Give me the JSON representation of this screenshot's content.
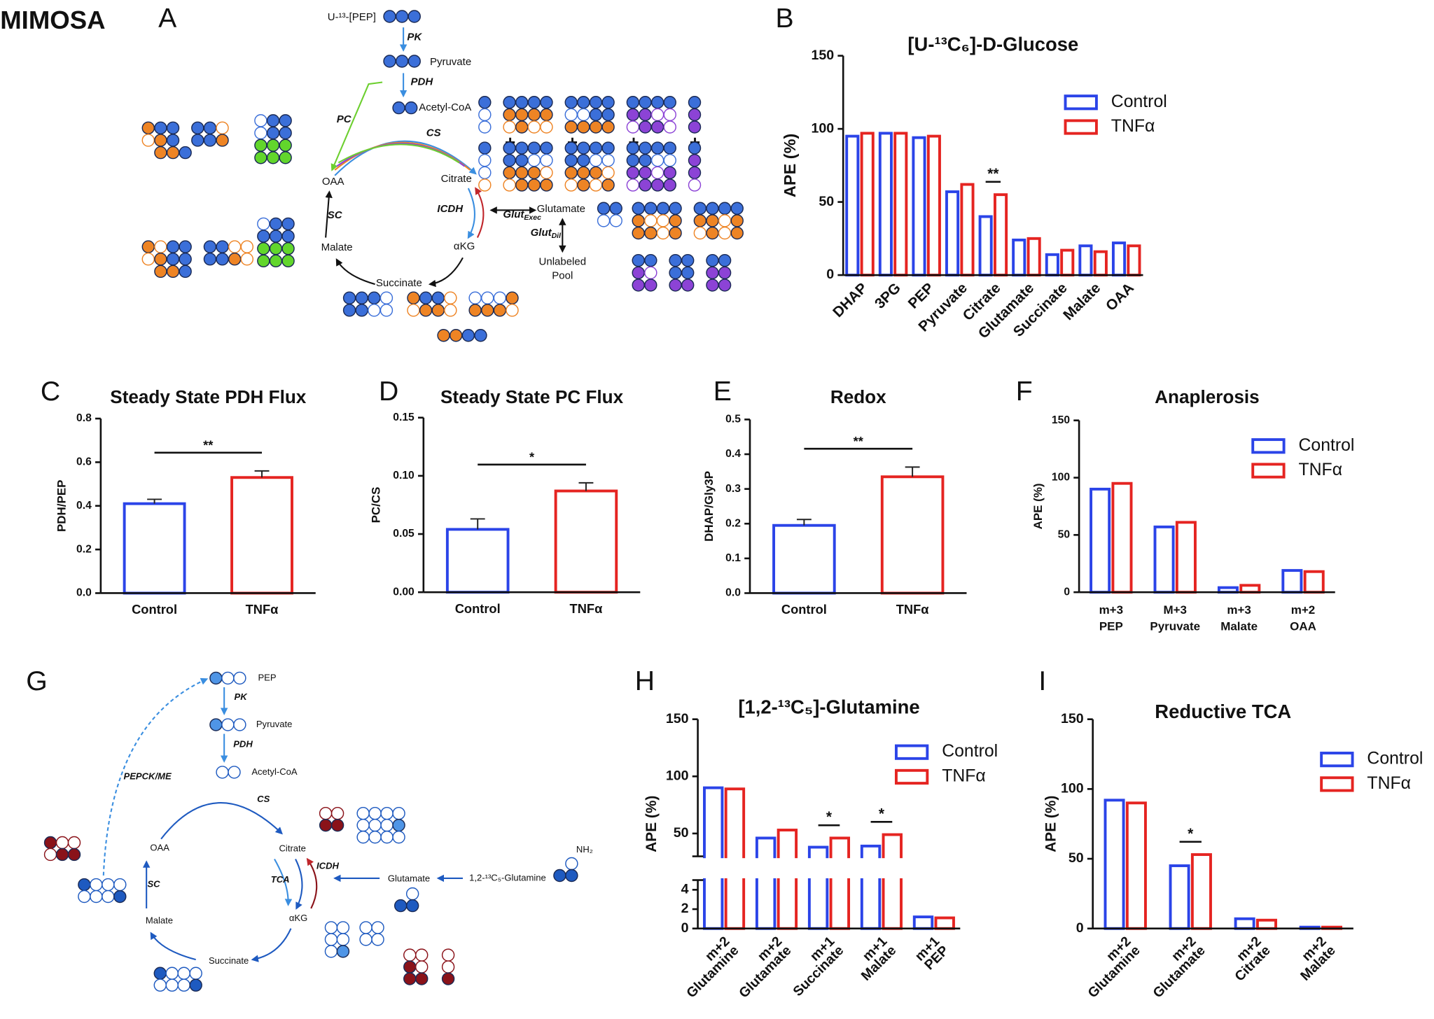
{
  "figure_label": "MIMOSA",
  "diagrams": [
    {
      "panel": "A",
      "labels": [
        "U-¹³-[PEP]",
        "PK",
        "Pyruvate",
        "PDH",
        "Acetyl-CoA",
        "PC",
        "CS",
        "Citrate",
        "OAA",
        "SC",
        "ICDH",
        "Glutamate",
        {
          "text": "Glut",
          "sub": "Exec"
        },
        {
          "text": "Glut",
          "sub": "Dil"
        },
        "αKG",
        "Malate",
        "Succinate",
        "Unlabeled",
        "Pool"
      ]
    },
    {
      "panel": "G",
      "labels": [
        "PEP",
        "PK",
        "Pyruvate",
        "PDH",
        "Acetyl-CoA",
        "PEPCK/ME",
        "CS",
        "Citrate",
        "OAA",
        "SC",
        "TCA",
        "ICDH",
        "Glutamate",
        "1,2-¹³C₅-Glutamine",
        "NH₂",
        "αKG",
        "Malate",
        "Succinate"
      ]
    }
  ],
  "chart_data": [
    {
      "type": "grouped_bar",
      "panel": "B",
      "title": "[U-¹³C₆]-D-Glucose",
      "y_label": "APE (%)",
      "categories": [
        "DHAP",
        "3PG",
        "PEP",
        "Pyruvate",
        "Citrate",
        "Glutamate",
        "Succinate",
        "Malate",
        "OAA"
      ],
      "series": [
        {
          "name": "Control",
          "color": "#2b44e8",
          "values": [
            95,
            97,
            94,
            57,
            40,
            24,
            14,
            20,
            22
          ]
        },
        {
          "name": "TNFα",
          "color": "#e52421",
          "values": [
            97,
            97,
            95,
            62,
            55,
            25,
            17,
            16,
            20
          ]
        }
      ],
      "annotations": [
        null,
        null,
        null,
        null,
        "**",
        null,
        null,
        null,
        null
      ],
      "ylim": [
        0,
        150
      ],
      "yticks": [
        0,
        50,
        100,
        150
      ],
      "legend": "top-right"
    },
    {
      "type": "bar",
      "panel": "C",
      "title": "Steady State PDH Flux",
      "y_label": "PDH/PEP",
      "categories": [
        "Control",
        "TNFα"
      ],
      "values": [
        0.41,
        0.53
      ],
      "errors": [
        0.02,
        0.03
      ],
      "colors": [
        "#2b44e8",
        "#e52421"
      ],
      "annotation": "**",
      "ylim": [
        0,
        0.8
      ],
      "yticks": [
        {
          "value": 0,
          "label": "0.0"
        },
        0.2,
        0.4,
        0.6,
        0.8
      ]
    },
    {
      "type": "bar",
      "panel": "D",
      "title": "Steady State PC Flux",
      "y_label": "PC/CS",
      "categories": [
        "Control",
        "TNFα"
      ],
      "values": [
        0.054,
        0.087
      ],
      "errors": [
        0.009,
        0.007
      ],
      "colors": [
        "#2b44e8",
        "#e52421"
      ],
      "annotation": "*",
      "ylim": [
        0,
        0.15
      ],
      "yticks": [
        {
          "value": 0,
          "label": "0.00"
        },
        0.05,
        {
          "value": 0.1,
          "label": "0.10"
        },
        0.15
      ]
    },
    {
      "type": "bar",
      "panel": "E",
      "title": "Redox",
      "y_label": "DHAP/Gly3P",
      "categories": [
        "Control",
        "TNFα"
      ],
      "values": [
        0.195,
        0.335
      ],
      "errors": [
        0.017,
        0.028
      ],
      "colors": [
        "#2b44e8",
        "#e52421"
      ],
      "annotation": "**",
      "ylim": [
        0,
        0.5
      ],
      "yticks": [
        {
          "value": 0,
          "label": "0.0"
        },
        0.1,
        0.2,
        0.3,
        0.4,
        0.5
      ]
    },
    {
      "type": "grouped_bar",
      "panel": "F",
      "title": "Anaplerosis",
      "y_label": "APE (%)",
      "categories": [
        [
          "m+3",
          "PEP"
        ],
        [
          "M+3",
          "Pyruvate"
        ],
        [
          "m+3",
          "Malate"
        ],
        [
          "m+2",
          "OAA"
        ]
      ],
      "series": [
        {
          "name": "Control",
          "color": "#2b44e8",
          "values": [
            90,
            57,
            4,
            19
          ]
        },
        {
          "name": "TNFα",
          "color": "#e52421",
          "values": [
            95,
            61,
            6,
            18
          ]
        }
      ],
      "ylim": [
        0,
        150
      ],
      "yticks": [
        0,
        50,
        100,
        150
      ],
      "legend": "top-right"
    },
    {
      "type": "grouped_bar",
      "panel": "H",
      "title": "[1,2-¹³C₅]-Glutamine",
      "y_label": "APE (%)",
      "categories": [
        [
          "m+2",
          "Glutamine"
        ],
        [
          "m+2",
          "Glutamate"
        ],
        [
          "m+1",
          "Succinate"
        ],
        [
          "m+1",
          "Malate"
        ],
        [
          "m+1",
          "PEP"
        ]
      ],
      "series": [
        {
          "name": "Control",
          "color": "#2b44e8",
          "values": [
            90,
            46,
            38,
            39,
            1.2
          ]
        },
        {
          "name": "TNFα",
          "color": "#e52421",
          "values": [
            89,
            53,
            46,
            49,
            1.1
          ]
        }
      ],
      "annotations": [
        null,
        null,
        "*",
        "*",
        null
      ],
      "ylim": [
        0,
        150
      ],
      "ybreak": [
        5,
        30
      ],
      "yticks": [
        0,
        2,
        4,
        50,
        100,
        150
      ],
      "legend": "top-right"
    },
    {
      "type": "grouped_bar",
      "panel": "I",
      "title": "Reductive TCA",
      "y_label": "APE (%)",
      "categories": [
        [
          "m+2",
          "Glutamine"
        ],
        [
          "m+2",
          "Glutamate"
        ],
        [
          "m+2",
          "Citrate"
        ],
        [
          "m+2",
          "Malate"
        ]
      ],
      "series": [
        {
          "name": "Control",
          "color": "#2b44e8",
          "values": [
            92,
            45,
            7,
            1
          ]
        },
        {
          "name": "TNFα",
          "color": "#e52421",
          "values": [
            90,
            53,
            6,
            1
          ]
        }
      ],
      "annotations": [
        null,
        "*",
        null,
        null
      ],
      "ylim": [
        0,
        150
      ],
      "yticks": [
        0,
        50,
        100,
        150
      ],
      "legend": "top-right"
    }
  ]
}
